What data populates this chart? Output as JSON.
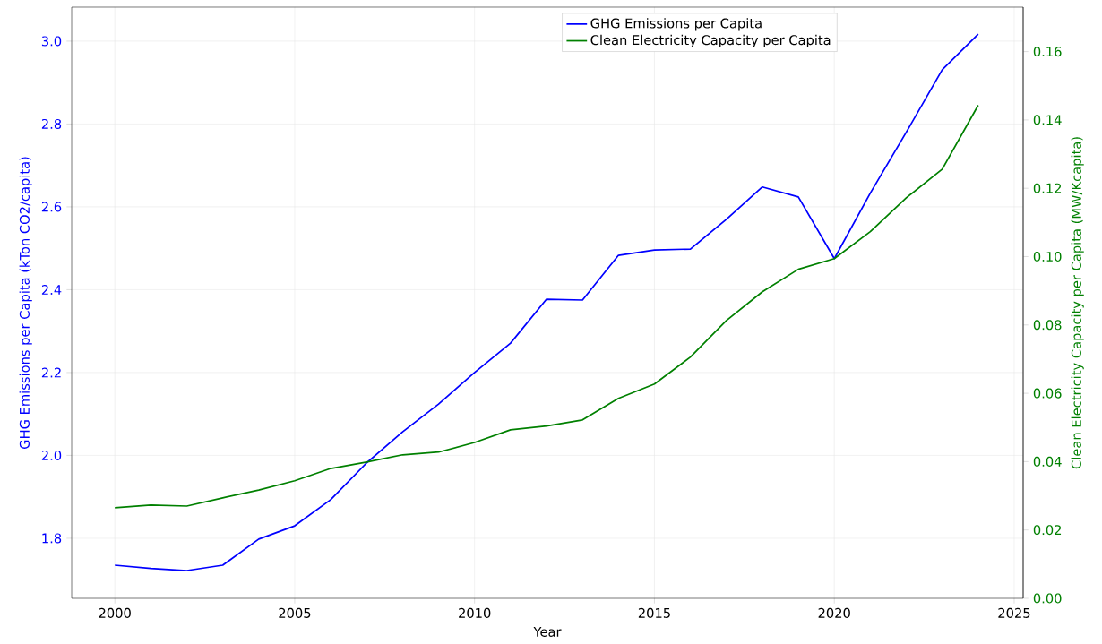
{
  "chart_data": {
    "type": "line",
    "xlabel": "Year",
    "ylabel": "GHG Emissions per Capita (kTon CO2/capita)",
    "y2label": "Clean Electricity Capacity per Capita (MW/Kcapita)",
    "x": [
      2000,
      2001,
      2002,
      2003,
      2004,
      2005,
      2006,
      2007,
      2008,
      2009,
      2010,
      2011,
      2012,
      2013,
      2014,
      2015,
      2016,
      2017,
      2018,
      2019,
      2020,
      2021,
      2022,
      2023,
      2024
    ],
    "series": [
      {
        "name": "GHG Emissions per Capita",
        "color": "#0000ff",
        "axis": "y",
        "values": [
          1.735,
          1.727,
          1.722,
          1.735,
          1.798,
          1.83,
          1.893,
          1.982,
          2.057,
          2.124,
          2.2,
          2.271,
          2.377,
          2.375,
          2.483,
          2.496,
          2.498,
          2.57,
          2.648,
          2.624,
          2.475,
          2.633,
          2.78,
          2.931,
          3.017
        ]
      },
      {
        "name": "Clean Electricity Capacity per Capita",
        "color": "#008000",
        "axis": "y2",
        "values": [
          0.0265,
          0.0273,
          0.027,
          0.0294,
          0.0317,
          0.0344,
          0.038,
          0.0399,
          0.042,
          0.0428,
          0.0456,
          0.0493,
          0.0504,
          0.0522,
          0.0585,
          0.0627,
          0.0706,
          0.0813,
          0.0897,
          0.0963,
          0.0994,
          0.1073,
          0.1172,
          0.1256,
          0.1443
        ]
      }
    ],
    "xlim": [
      1998.8,
      2025.25
    ],
    "xticks": [
      2000,
      2005,
      2010,
      2015,
      2020,
      2025
    ],
    "ylim": [
      1.655,
      3.082
    ],
    "yticks": [
      {
        "value": 1.8,
        "label": "1.8"
      },
      {
        "value": 2.0,
        "label": "2.0"
      },
      {
        "value": 2.2,
        "label": "2.2"
      },
      {
        "value": 2.4,
        "label": "2.4"
      },
      {
        "value": 2.6,
        "label": "2.6"
      },
      {
        "value": 2.8,
        "label": "2.8"
      },
      {
        "value": 3.0,
        "label": "3.0"
      }
    ],
    "y2lim": [
      0,
      0.173
    ],
    "y2ticks": [
      {
        "value": 0,
        "label": "0.00"
      },
      {
        "value": 0.02,
        "label": "0.02"
      },
      {
        "value": 0.04,
        "label": "0.04"
      },
      {
        "value": 0.06,
        "label": "0.06"
      },
      {
        "value": 0.08,
        "label": "0.08"
      },
      {
        "value": 0.1,
        "label": "0.10"
      },
      {
        "value": 0.12,
        "label": "0.12"
      },
      {
        "value": 0.14,
        "label": "0.14"
      },
      {
        "value": 0.16,
        "label": "0.16"
      }
    ],
    "grid": true,
    "legend": "top"
  }
}
